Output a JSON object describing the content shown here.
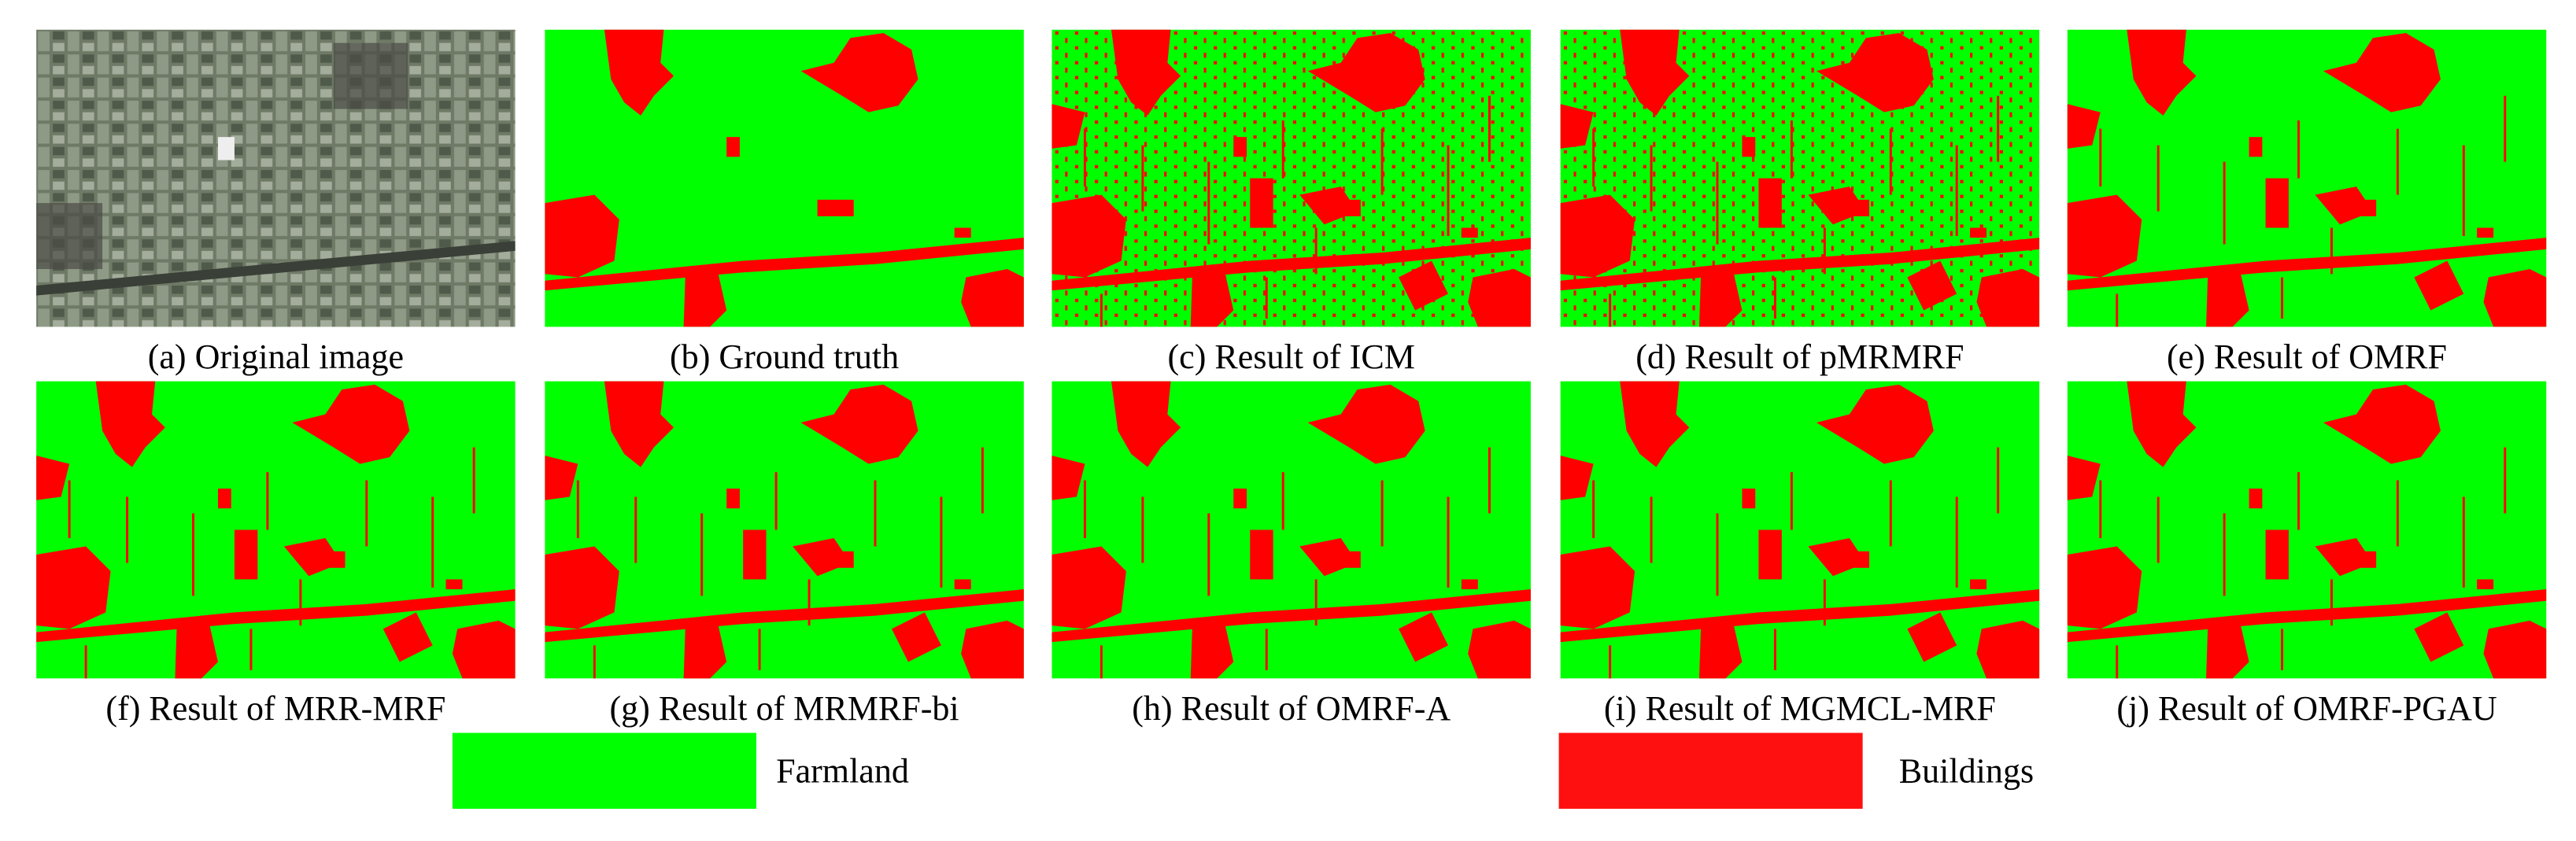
{
  "panels": [
    {
      "caption": "(a) Original image"
    },
    {
      "caption": "(b) Ground truth"
    },
    {
      "caption": "(c) Result of ICM"
    },
    {
      "caption": "(d) Result of pMRMRF"
    },
    {
      "caption": "(e) Result of OMRF"
    },
    {
      "caption": "(f) Result of MRR-MRF"
    },
    {
      "caption": "(g) Result of MRMRF-bi"
    },
    {
      "caption": "(h) Result of OMRF-A"
    },
    {
      "caption": "(i) Result of MGMCL-MRF"
    },
    {
      "caption": "(j) Result of OMRF-PGAU"
    }
  ],
  "legend": [
    {
      "label": "Farmland"
    },
    {
      "label": "Buildings"
    }
  ]
}
